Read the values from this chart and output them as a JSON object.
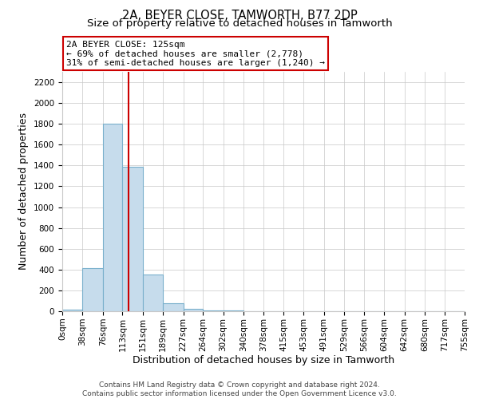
{
  "title": "2A, BEYER CLOSE, TAMWORTH, B77 2DP",
  "subtitle": "Size of property relative to detached houses in Tamworth",
  "xlabel": "Distribution of detached houses by size in Tamworth",
  "ylabel": "Number of detached properties",
  "bin_edges": [
    0,
    38,
    76,
    113,
    151,
    189,
    227,
    264,
    302,
    340,
    378,
    415,
    453,
    491,
    529,
    566,
    604,
    642,
    680,
    717,
    755
  ],
  "bin_labels": [
    "0sqm",
    "38sqm",
    "76sqm",
    "113sqm",
    "151sqm",
    "189sqm",
    "227sqm",
    "264sqm",
    "302sqm",
    "340sqm",
    "378sqm",
    "415sqm",
    "453sqm",
    "491sqm",
    "529sqm",
    "566sqm",
    "604sqm",
    "642sqm",
    "680sqm",
    "717sqm",
    "755sqm"
  ],
  "counts": [
    15,
    415,
    1800,
    1390,
    350,
    75,
    25,
    10,
    5,
    0,
    0,
    0,
    0,
    0,
    0,
    0,
    0,
    0,
    0,
    0
  ],
  "bar_color": "#c6dcec",
  "bar_edge_color": "#7ab0cc",
  "property_value": 125,
  "vline_color": "#cc0000",
  "annotation_line1": "2A BEYER CLOSE: 125sqm",
  "annotation_line2": "← 69% of detached houses are smaller (2,778)",
  "annotation_line3": "31% of semi-detached houses are larger (1,240) →",
  "annotation_box_color": "#ffffff",
  "annotation_box_edge": "#cc0000",
  "ylim": [
    0,
    2300
  ],
  "yticks": [
    0,
    200,
    400,
    600,
    800,
    1000,
    1200,
    1400,
    1600,
    1800,
    2000,
    2200
  ],
  "footer_line1": "Contains HM Land Registry data © Crown copyright and database right 2024.",
  "footer_line2": "Contains public sector information licensed under the Open Government Licence v3.0.",
  "bg_color": "#ffffff",
  "grid_color": "#c8c8c8",
  "title_fontsize": 10.5,
  "subtitle_fontsize": 9.5,
  "label_fontsize": 9,
  "tick_fontsize": 7.5,
  "annotation_fontsize": 8,
  "footer_fontsize": 6.5
}
